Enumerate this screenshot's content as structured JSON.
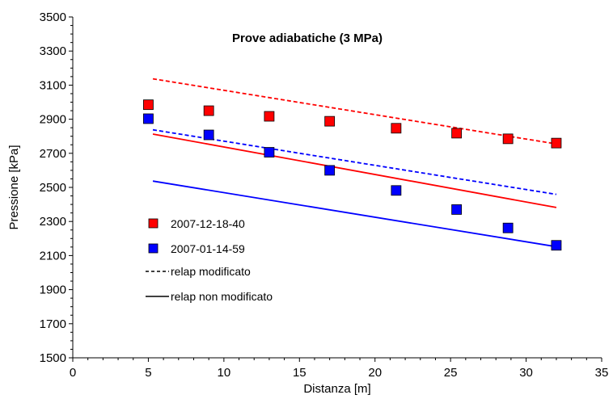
{
  "chart_data": {
    "type": "scatter",
    "title": "Prove adiabatiche  (3 MPa)",
    "xlabel": "Distanza [m]",
    "ylabel": "Pressione [kPa]",
    "xlim": [
      0,
      35
    ],
    "ylim": [
      1500,
      3500
    ],
    "xticks": [
      0,
      5,
      10,
      15,
      20,
      25,
      30,
      35
    ],
    "yticks": [
      1500,
      1700,
      1900,
      2100,
      2300,
      2500,
      2700,
      2900,
      3100,
      3300,
      3500
    ],
    "grid": false,
    "legend_position": "left",
    "series": [
      {
        "name": "2007-12-18-40",
        "kind": "markers",
        "marker": "square",
        "color": "#ff0000",
        "x": [
          5.0,
          9.0,
          13.0,
          17.0,
          21.4,
          25.4,
          28.8,
          32.0
        ],
        "y": [
          2985,
          2950,
          2917,
          2888,
          2847,
          2818,
          2785,
          2760
        ]
      },
      {
        "name": "2007-01-14-59",
        "kind": "markers",
        "marker": "square",
        "color": "#0000ff",
        "x": [
          5.0,
          9.0,
          13.0,
          17.0,
          21.4,
          25.4,
          28.8,
          32.0
        ],
        "y": [
          2903,
          2808,
          2706,
          2600,
          2482,
          2370,
          2262,
          2160
        ]
      },
      {
        "name": "",
        "kind": "line",
        "dash": "dashed",
        "color": "#ff0000",
        "x": [
          5.3,
          32.0
        ],
        "y": [
          3137,
          2755
        ]
      },
      {
        "name": "",
        "kind": "line",
        "dash": "dashed",
        "color": "#0000ff",
        "x": [
          5.3,
          32.0
        ],
        "y": [
          2838,
          2459
        ]
      },
      {
        "name": "",
        "kind": "line",
        "dash": "solid",
        "color": "#ff0000",
        "x": [
          5.3,
          32.0
        ],
        "y": [
          2813,
          2382
        ]
      },
      {
        "name": "",
        "kind": "line",
        "dash": "solid",
        "color": "#0000ff",
        "x": [
          5.3,
          32.0
        ],
        "y": [
          2537,
          2152
        ]
      }
    ],
    "legend": [
      {
        "label": "2007-12-18-40",
        "symbol": "square",
        "color": "#ff0000"
      },
      {
        "label": "2007-01-14-59",
        "symbol": "square",
        "color": "#0000ff"
      },
      {
        "label": "relap modificato",
        "symbol": "dashed-line",
        "color": "#000000"
      },
      {
        "label": "relap non modificato",
        "symbol": "solid-line",
        "color": "#000000"
      }
    ]
  }
}
